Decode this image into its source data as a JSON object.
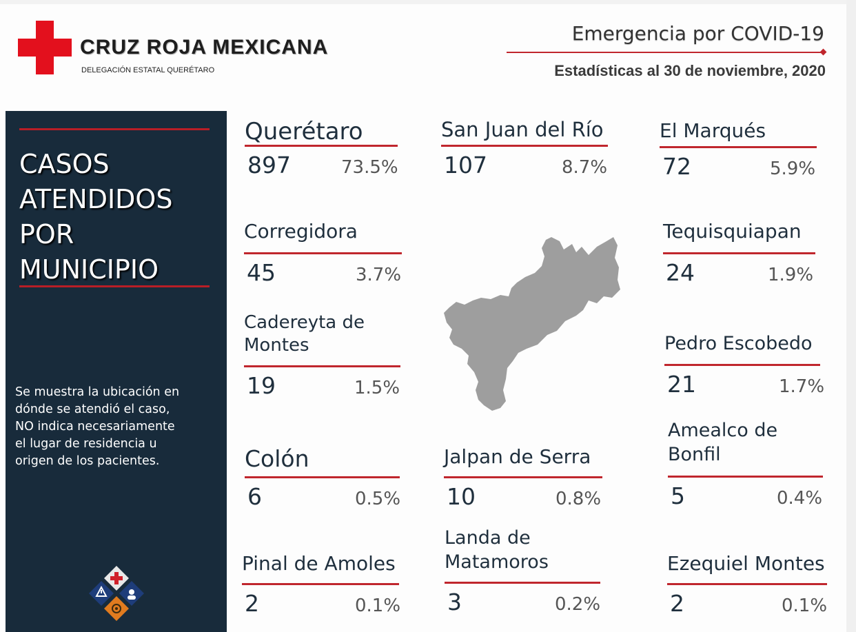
{
  "header": {
    "org_name": "CRUZ ROJA MEXICANA",
    "org_subtitle": "DELEGACIÓN ESTATAL QUERÉTARO",
    "title": "Emergencia por COVID-19",
    "date_line": "Estadísticas al 30 de noviembre, 2020",
    "accent_color": "#c0262d",
    "logo_icon": "red-cross-icon"
  },
  "sidebar": {
    "title_lines": [
      "CASOS",
      "ATENDIDOS",
      "POR",
      "MUNICIPIO"
    ],
    "note_lines": [
      "Se muestra la ubicación en",
      "dónde se atendió el caso,",
      "NO indica necesariamente",
      "el  lugar de residencia u",
      "origen de los pacientes."
    ],
    "background_color": "#182b3b",
    "emblem_icon": "emergency-emblem-icon"
  },
  "municipios": [
    {
      "name_lines": [
        "Querétaro"
      ],
      "count": "897",
      "percent": "73.5%"
    },
    {
      "name_lines": [
        "San Juan del Río"
      ],
      "count": "107",
      "percent": "8.7%"
    },
    {
      "name_lines": [
        "El Marqués"
      ],
      "count": "72",
      "percent": "5.9%"
    },
    {
      "name_lines": [
        "Corregidora"
      ],
      "count": "45",
      "percent": "3.7%"
    },
    {
      "name_lines": [
        "Tequisquiapan"
      ],
      "count": "24",
      "percent": "1.9%"
    },
    {
      "name_lines": [
        "Cadereyta de",
        "Montes"
      ],
      "count": "19",
      "percent": "1.5%"
    },
    {
      "name_lines": [
        "Pedro Escobedo"
      ],
      "count": "21",
      "percent": "1.7%"
    },
    {
      "name_lines": [
        "Colón"
      ],
      "count": "6",
      "percent": "0.5%"
    },
    {
      "name_lines": [
        "Jalpan de Serra"
      ],
      "count": "10",
      "percent": "0.8%"
    },
    {
      "name_lines": [
        "Amealco de",
        "Bonfil"
      ],
      "count": "5",
      "percent": "0.4%"
    },
    {
      "name_lines": [
        "Pinal de Amoles"
      ],
      "count": "2",
      "percent": "0.1%"
    },
    {
      "name_lines": [
        "Landa de",
        "Matamoros"
      ],
      "count": "3",
      "percent": "0.2%"
    },
    {
      "name_lines": [
        "Ezequiel Montes"
      ],
      "count": "2",
      "percent": "0.1%"
    }
  ],
  "map": {
    "icon": "queretaro-state-map-icon",
    "fill_color": "#9e9e9e"
  }
}
